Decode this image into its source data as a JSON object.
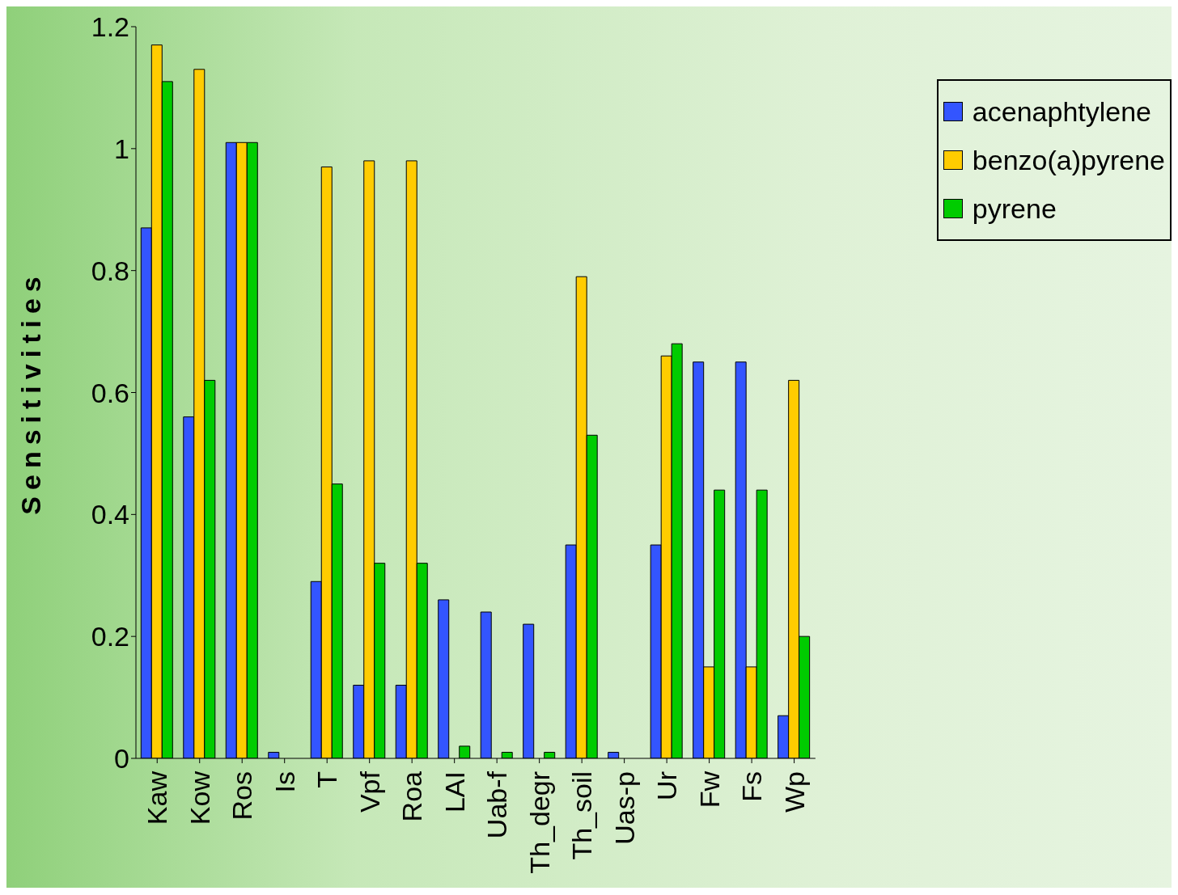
{
  "chart_data": {
    "type": "bar",
    "ylabel": "Sensitivities",
    "categories": [
      "Kaw",
      "Kow",
      "Ros",
      "Is",
      "T",
      "Vpf",
      "Roa",
      "LAI",
      "Uab-f",
      "Th_degr",
      "Th_soil",
      "Uas-p",
      "Ur",
      "Fw",
      "Fs",
      "Wp"
    ],
    "series": [
      {
        "name": "acenaphtylene",
        "color": "#3355ff",
        "values": [
          0.87,
          0.56,
          1.01,
          0.01,
          0.29,
          0.12,
          0.12,
          0.26,
          0.24,
          0.22,
          0.35,
          0.01,
          0.35,
          0.65,
          0.65,
          0.07
        ]
      },
      {
        "name": "benzo(a)pyrene",
        "color": "#ffcc00",
        "values": [
          1.17,
          1.13,
          1.01,
          0,
          0.97,
          0.98,
          0.98,
          0,
          0,
          0,
          0.79,
          0,
          0.66,
          0.15,
          0.15,
          0.62
        ]
      },
      {
        "name": "pyrene",
        "color": "#00cc00",
        "values": [
          1.11,
          0.62,
          1.01,
          0,
          0.45,
          0.32,
          0.32,
          0.02,
          0.01,
          0.01,
          0.53,
          0,
          0.68,
          0.44,
          0.44,
          0.2
        ]
      }
    ],
    "ylim": [
      0,
      1.2
    ],
    "yticks": [
      0,
      0.2,
      0.4,
      0.6,
      0.8,
      1,
      1.2
    ],
    "grid": false,
    "legend": "top right"
  }
}
